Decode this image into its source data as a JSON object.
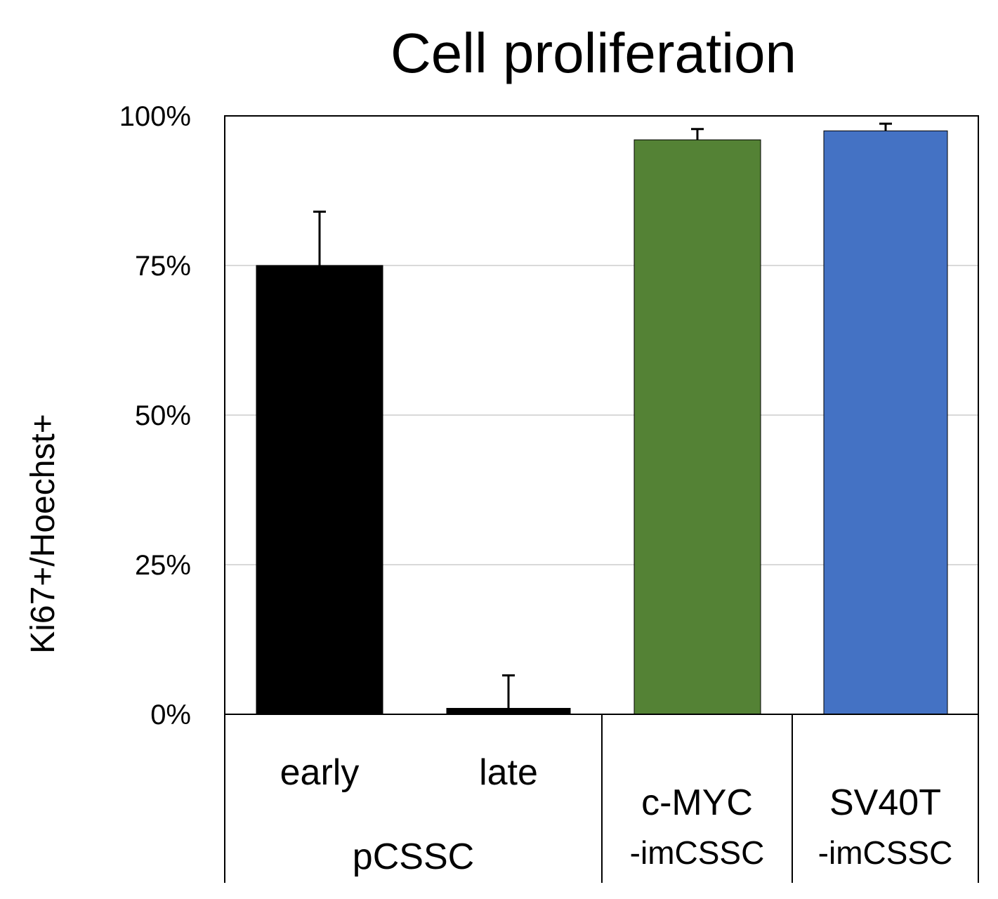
{
  "chart_data": {
    "type": "bar",
    "title": "Cell proliferation",
    "ylabel": "Ki67+/Hoechst+",
    "xlabel": "",
    "ylim": [
      0,
      100
    ],
    "yticks": [
      0,
      25,
      50,
      75,
      100
    ],
    "ytick_labels": [
      "0%",
      "25%",
      "50%",
      "75%",
      "100%"
    ],
    "grid": true,
    "legend": "none",
    "bars": [
      {
        "label": "early",
        "group": "pCSSC",
        "value": 75,
        "error": 9,
        "color": "#000000"
      },
      {
        "label": "late",
        "group": "pCSSC",
        "value": 1,
        "error": 5.5,
        "color": "#000000"
      },
      {
        "label": "c-MYC",
        "sublabel": "-imCSSC",
        "value": 96,
        "error": 1.8,
        "color": "#548235"
      },
      {
        "label": "SV40T",
        "sublabel": "-imCSSC",
        "value": 97.5,
        "error": 1.2,
        "color": "#4472c4"
      }
    ],
    "groups": [
      {
        "label": "pCSSC",
        "members": [
          "early",
          "late"
        ]
      },
      {
        "label": "c-MYC -imCSSC",
        "members": [
          "c-MYC"
        ]
      },
      {
        "label": "SV40T -imCSSC",
        "members": [
          "SV40T"
        ]
      }
    ]
  }
}
